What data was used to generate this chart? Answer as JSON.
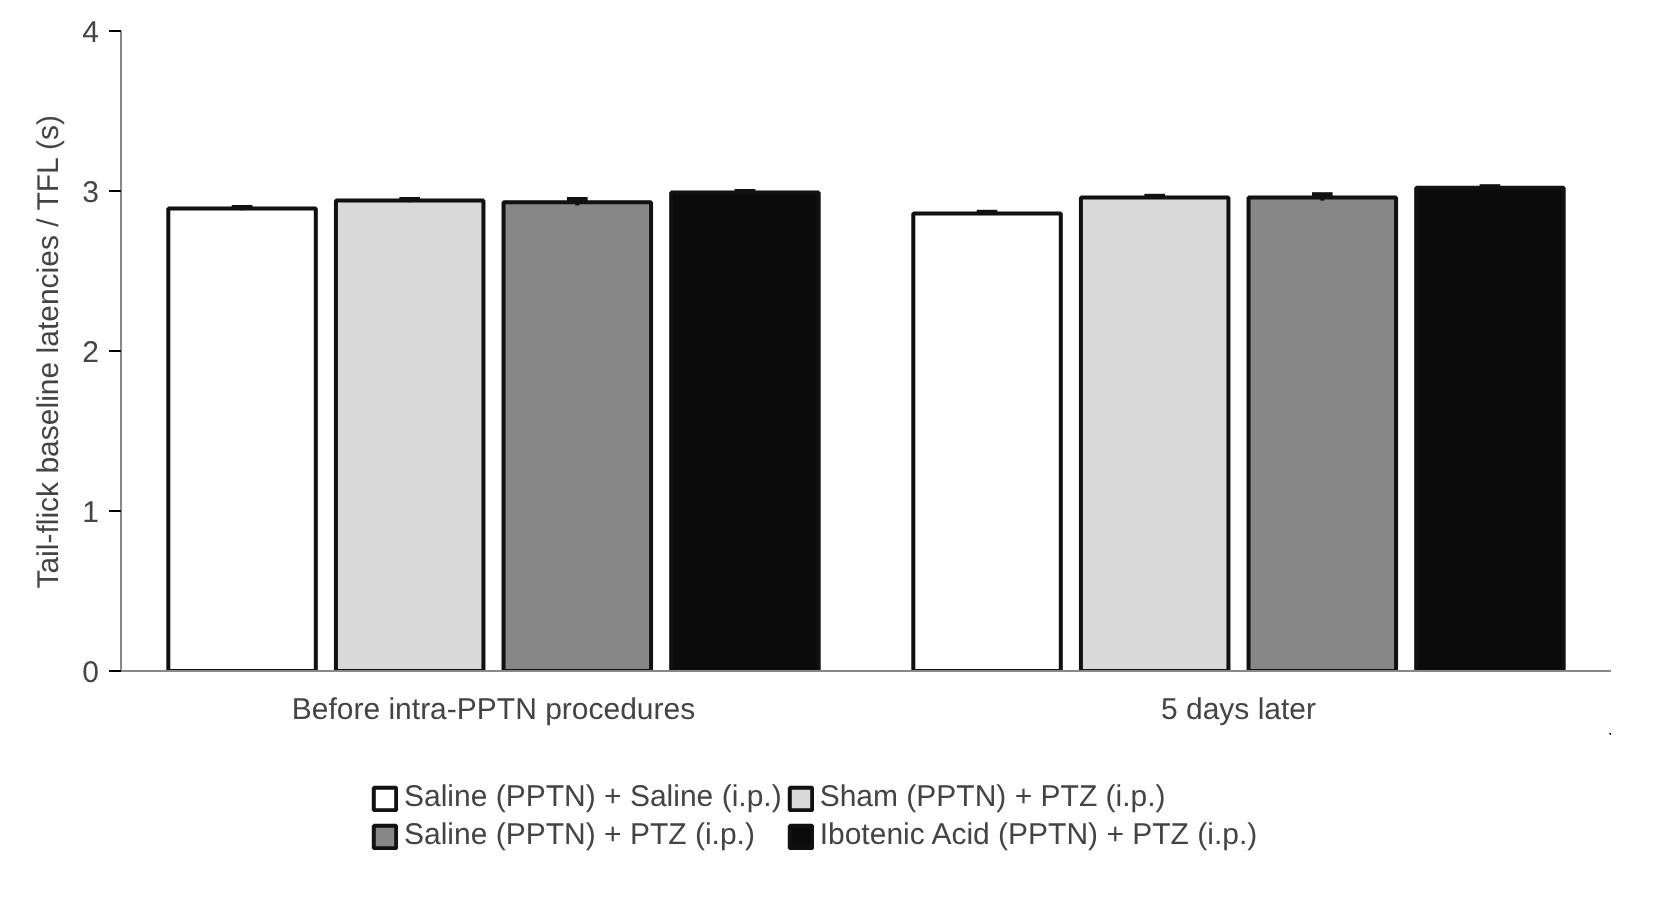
{
  "chart_data": {
    "type": "bar",
    "ylabel": "Tail-flick baseline latencies / TFL (s)",
    "categories": [
      "Before intra-PPTN procedures",
      "5 days later"
    ],
    "series": [
      {
        "name": "Saline (PPTN) + Saline (i.p.)",
        "color": "#ffffff",
        "values": [
          2.89,
          2.86
        ],
        "errors": [
          0.01,
          0.01
        ]
      },
      {
        "name": "Sham (PPTN) + PTZ (i.p.)",
        "color": "#d9d9d9",
        "values": [
          2.94,
          2.96
        ],
        "errors": [
          0.01,
          0.01
        ]
      },
      {
        "name": "Saline (PPTN) + PTZ (i.p.)",
        "color": "#878787",
        "values": [
          2.93,
          2.96
        ],
        "errors": [
          0.02,
          0.02
        ]
      },
      {
        "name": "Ibotenic Acid (PPTN) + PTZ (i.p.)",
        "color": "#0b0b0b",
        "values": [
          2.99,
          3.02
        ],
        "errors": [
          0.01,
          0.01
        ]
      }
    ],
    "ylim": [
      0,
      4
    ],
    "yticks": [
      0,
      1,
      2,
      3,
      4
    ],
    "grid": false,
    "legend": "bottom"
  }
}
